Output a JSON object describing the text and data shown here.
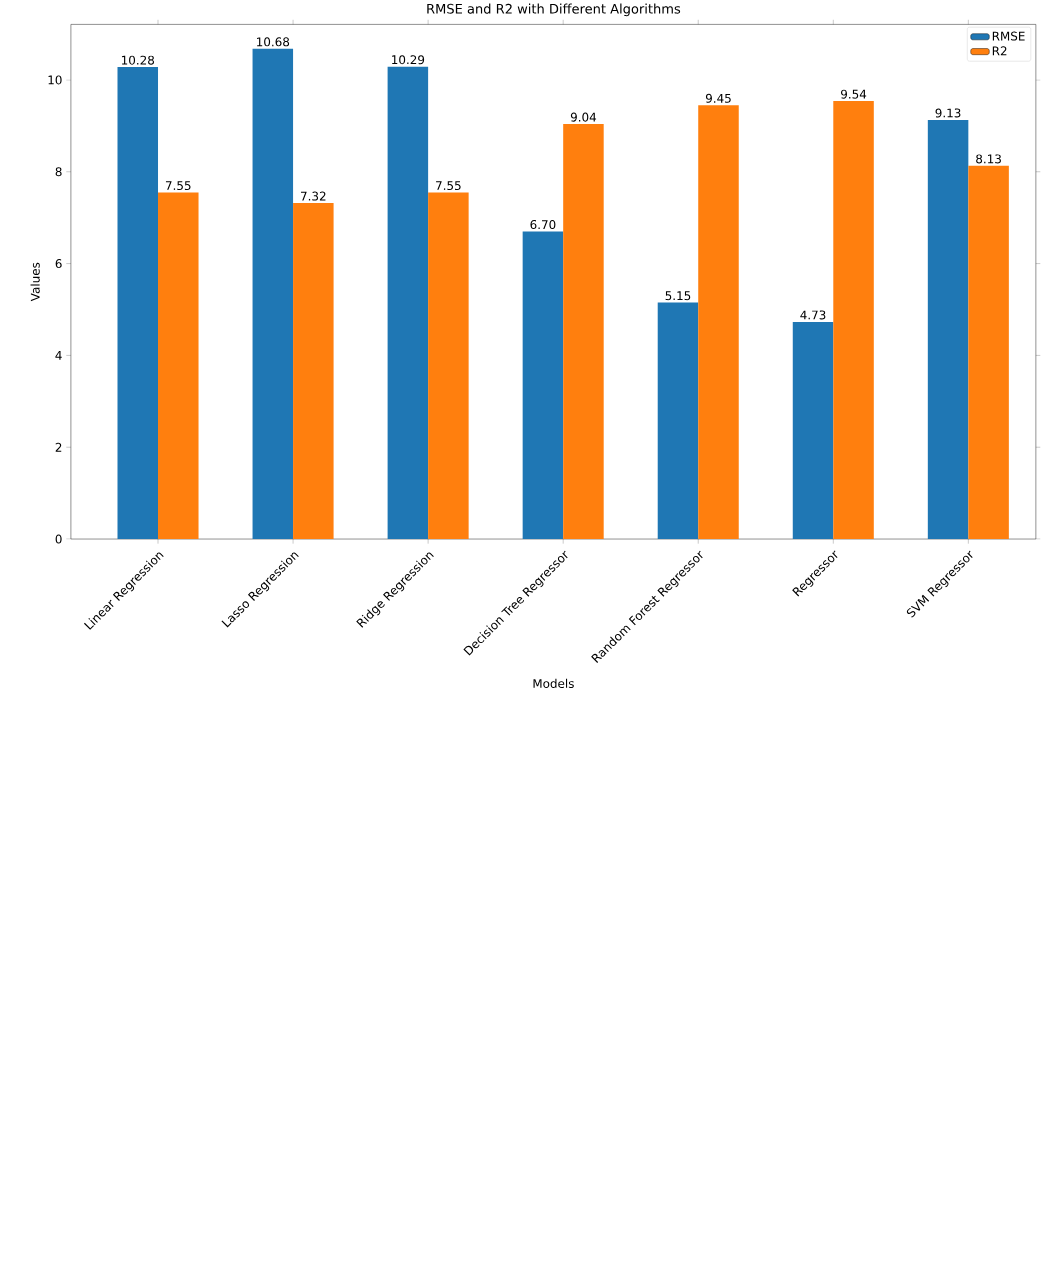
{
  "chart_data": {
    "type": "bar",
    "title": "RMSE and R2 with Different Algorithms",
    "xlabel": "Models",
    "ylabel": "Values",
    "categories": [
      "Linear Regression",
      "Lasso Regression",
      "Ridge Regression",
      "Decision Tree Regressor",
      "Random Forest Regressor",
      "Regressor",
      "SVM Regressor"
    ],
    "series": [
      {
        "name": "RMSE",
        "color": "#1f77b4",
        "values": [
          10.28,
          10.68,
          10.29,
          6.7,
          5.15,
          4.73,
          9.13
        ],
        "value_labels": [
          "10.28",
          "10.68",
          "10.29",
          "6.70",
          "5.15",
          "4.73",
          "9.13"
        ]
      },
      {
        "name": "R2",
        "color": "#ff7f0e",
        "values": [
          7.55,
          7.32,
          7.55,
          9.04,
          9.45,
          9.54,
          8.13
        ],
        "value_labels": [
          "7.55",
          "7.32",
          "7.55",
          "9.04",
          "9.45",
          "9.54",
          "8.13"
        ]
      }
    ],
    "ylim": [
      0,
      11.21
    ],
    "yticks": [
      0,
      2,
      4,
      6,
      8,
      10
    ],
    "legend": "top right",
    "grid": false
  }
}
